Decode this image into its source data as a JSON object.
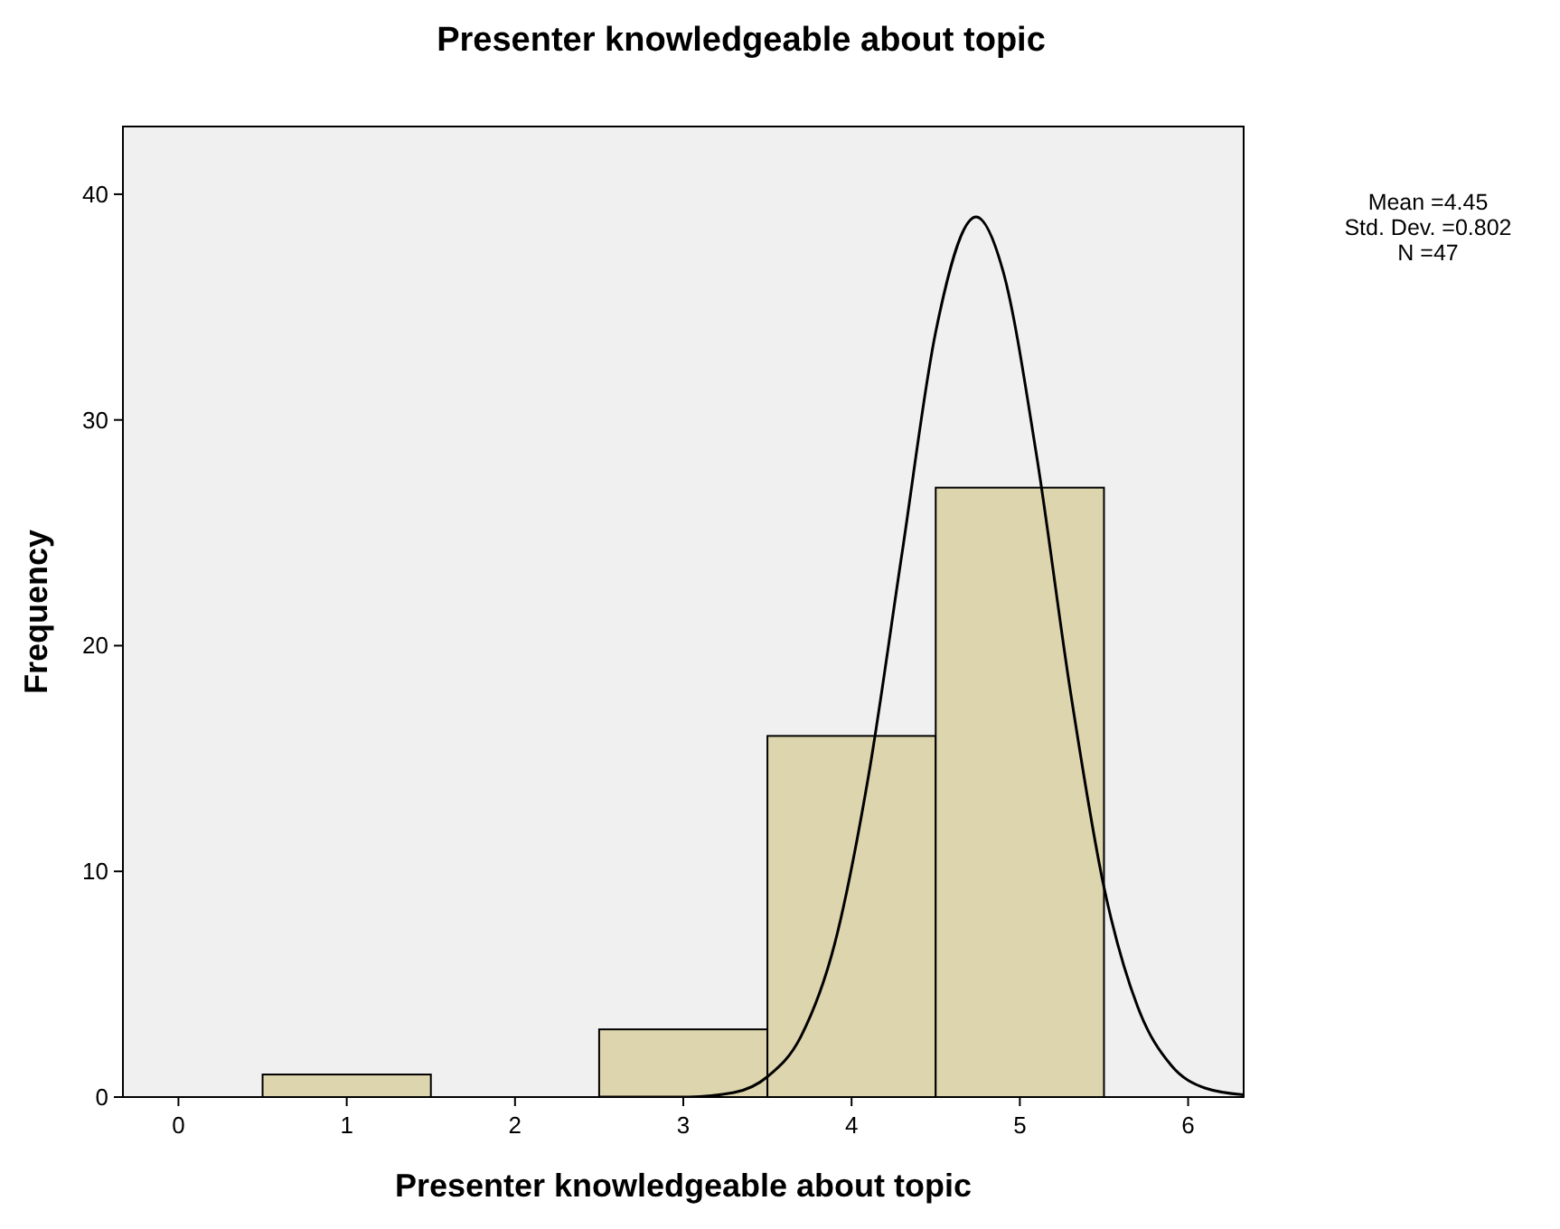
{
  "chart_data": {
    "type": "histogram",
    "title": "Presenter knowledgeable about topic",
    "xlabel": "Presenter knowledgeable about topic",
    "ylabel": "Frequency",
    "bins": [
      0.5,
      1.5,
      2.5,
      3.5,
      4.5,
      5.5
    ],
    "values": [
      1,
      0,
      3,
      16,
      27
    ],
    "color": "#ddd5ad",
    "series": [
      {
        "type": "line",
        "color": "#000000",
        "x": [
          2.5,
          3.0,
          3.3,
          3.5,
          3.7,
          3.9,
          4.1,
          4.3,
          4.5,
          4.74,
          4.9,
          5.1,
          5.3,
          5.5,
          5.7,
          5.9,
          6.1,
          6.33
        ],
        "values": [
          0,
          0,
          0.2,
          0.9,
          2.7,
          6.8,
          14.2,
          24.1,
          33.9,
          39,
          36.6,
          28.4,
          18,
          9.3,
          4.0,
          1.4,
          0.4,
          0.1
        ]
      }
    ],
    "xlim": [
      -0.33,
      6.33
    ],
    "ylim": [
      0,
      43
    ],
    "xticks": [
      0,
      1,
      2,
      3,
      4,
      5,
      6
    ],
    "yticks": [
      0,
      10,
      20,
      30,
      40
    ],
    "annotations": [
      "Mean =4.45",
      "Std. Dev. =0.802",
      "N =47"
    ]
  }
}
